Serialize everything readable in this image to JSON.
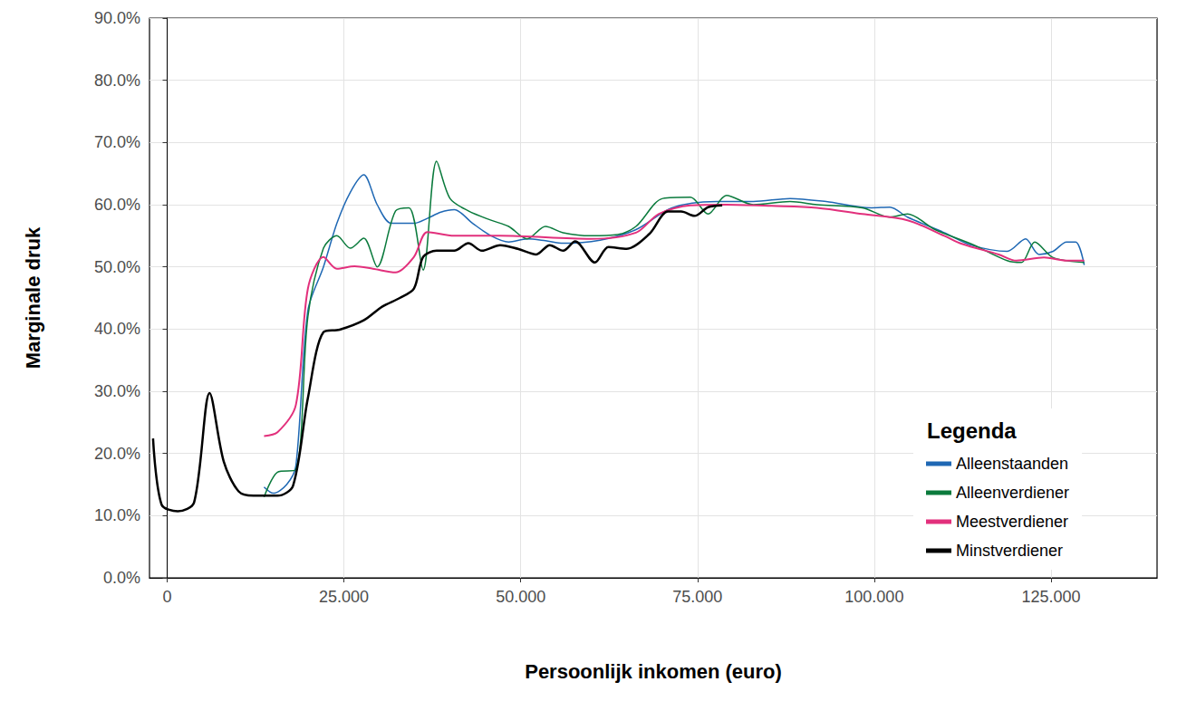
{
  "chart_data": {
    "type": "line",
    "x_label": "Persoonlijk inkomen (euro)",
    "y_label": "Marginale druk",
    "legend_title": "Legenda",
    "legend": "lower right",
    "grid": true,
    "xlim": [
      -2500,
      140000
    ],
    "xticks": [
      0,
      {
        "value": 25000,
        "label": "25.000"
      },
      {
        "value": 50000,
        "label": "50.000"
      },
      {
        "value": 75000,
        "label": "75.000"
      },
      {
        "value": 100000,
        "label": "100.000"
      },
      {
        "value": 125000,
        "label": "125.000"
      }
    ],
    "ylim": [
      0,
      90
    ],
    "yticks": [
      {
        "value": 0,
        "label": "0.0%"
      },
      {
        "value": 10,
        "label": "10.0%"
      },
      {
        "value": 20,
        "label": "20.0%"
      },
      {
        "value": 30,
        "label": "30.0%"
      },
      {
        "value": 40,
        "label": "40.0%"
      },
      {
        "value": 50,
        "label": "50.0%"
      },
      {
        "value": 60,
        "label": "60.0%"
      },
      {
        "value": 70,
        "label": "70.0%"
      },
      {
        "value": 80,
        "label": "80.0%"
      },
      {
        "value": 90,
        "label": "90.0%"
      }
    ],
    "series": [
      {
        "name": "Alleenstaanden",
        "color": "#1f68b4",
        "x": [
          13700,
          15000,
          16900,
          18200,
          19900,
          22100,
          24000,
          25900,
          27800,
          29700,
          31700,
          34900,
          36800,
          38700,
          40600,
          43200,
          45800,
          48300,
          50900,
          53500,
          56000,
          61200,
          66300,
          71400,
          77800,
          82900,
          88100,
          93200,
          99600,
          102200,
          104700,
          109900,
          113700,
          118800,
          121400,
          123300,
          125300,
          127200,
          128500,
          129700
        ],
        "values": [
          14.6,
          13.6,
          15.0,
          18.0,
          43.0,
          50.0,
          57.0,
          62.0,
          64.8,
          60.0,
          57.0,
          57.0,
          57.8,
          58.8,
          59.2,
          57.0,
          55.0,
          54.0,
          54.5,
          54.2,
          53.8,
          54.3,
          56.0,
          59.5,
          60.5,
          60.5,
          61.0,
          60.5,
          59.5,
          59.6,
          58.0,
          55.5,
          53.5,
          52.5,
          54.5,
          52.0,
          52.5,
          54.0,
          54.0,
          50.3
        ]
      },
      {
        "name": "Alleenverdiener",
        "color": "#0a7a3c",
        "x": [
          13700,
          15600,
          18200,
          19900,
          22100,
          24000,
          25900,
          27800,
          29700,
          32300,
          34200,
          36200,
          38100,
          40000,
          42600,
          45800,
          48300,
          50900,
          53500,
          56000,
          59900,
          63700,
          66300,
          70100,
          74000,
          76500,
          79100,
          82900,
          88100,
          91900,
          98300,
          102200,
          104700,
          108600,
          113700,
          118800,
          120800,
          122700,
          125300,
          129700
        ],
        "values": [
          13.0,
          17.0,
          17.4,
          42.0,
          53.0,
          55.0,
          53.0,
          54.6,
          50.0,
          59.0,
          59.5,
          49.5,
          67.0,
          61.0,
          59.0,
          57.5,
          56.5,
          54.5,
          56.5,
          55.5,
          55.0,
          55.2,
          56.5,
          61.0,
          61.2,
          58.5,
          61.5,
          60.0,
          60.5,
          60.0,
          59.5,
          58.0,
          58.5,
          56.0,
          53.7,
          51.0,
          50.7,
          54.0,
          51.5,
          50.7
        ]
      },
      {
        "name": "Meestverdiener",
        "color": "#e2307c",
        "x": [
          13700,
          15600,
          18200,
          19900,
          22100,
          24000,
          26500,
          29100,
          32300,
          34900,
          36800,
          40600,
          47100,
          59900,
          66300,
          69500,
          74000,
          79100,
          85500,
          91900,
          98300,
          104700,
          109900,
          112400,
          117600,
          120100,
          124000,
          127200,
          129700
        ],
        "values": [
          22.8,
          23.4,
          27.8,
          46.5,
          51.6,
          49.7,
          50.1,
          49.7,
          49.1,
          51.6,
          55.6,
          55.0,
          55.0,
          54.5,
          55.5,
          58.5,
          59.9,
          60.0,
          59.8,
          59.5,
          58.5,
          57.5,
          55.0,
          53.7,
          52.0,
          51.0,
          51.5,
          51.0,
          51.0
        ]
      },
      {
        "name": "Minstverdiener",
        "color": "#000000",
        "x": [
          -2000,
          -800,
          1500,
          3800,
          6000,
          8000,
          10100,
          12200,
          15600,
          17800,
          19900,
          22100,
          24400,
          27800,
          30400,
          32900,
          34900,
          36200,
          38100,
          40600,
          42600,
          44500,
          47100,
          49600,
          52200,
          54100,
          56000,
          57700,
          60500,
          62400,
          65000,
          68200,
          70800,
          72700,
          74600,
          76500,
          78500
        ],
        "values": [
          22.4,
          11.8,
          10.7,
          12.1,
          29.7,
          18.7,
          13.9,
          13.2,
          13.2,
          14.8,
          28.9,
          39.5,
          39.9,
          41.4,
          43.6,
          45.0,
          46.5,
          51.6,
          52.6,
          52.6,
          53.8,
          52.6,
          53.5,
          52.9,
          52.0,
          53.5,
          52.6,
          54.1,
          50.7,
          53.2,
          52.9,
          55.3,
          58.9,
          58.9,
          58.2,
          59.6,
          59.9
        ]
      }
    ]
  }
}
